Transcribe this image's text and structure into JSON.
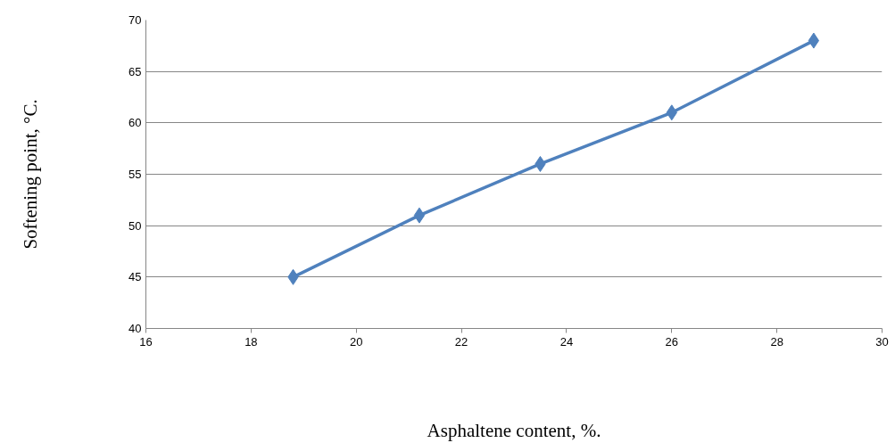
{
  "chart_data": {
    "type": "line",
    "xlabel": "Asphaltene content, %.",
    "ylabel": "Softening point, °C.",
    "x": [
      18.8,
      21.2,
      23.5,
      26.0,
      28.7
    ],
    "series": [
      {
        "color": "#4f81bd",
        "values": [
          45,
          51,
          56,
          61,
          68
        ]
      }
    ],
    "xlim": [
      16,
      30
    ],
    "xticks": [
      16,
      18,
      20,
      22,
      24,
      26,
      28,
      30
    ],
    "ylim": [
      40,
      70
    ],
    "yticks": [
      40,
      45,
      50,
      55,
      60,
      65,
      70
    ],
    "grid": "y",
    "marker": "diamond",
    "line_style": "solid"
  }
}
